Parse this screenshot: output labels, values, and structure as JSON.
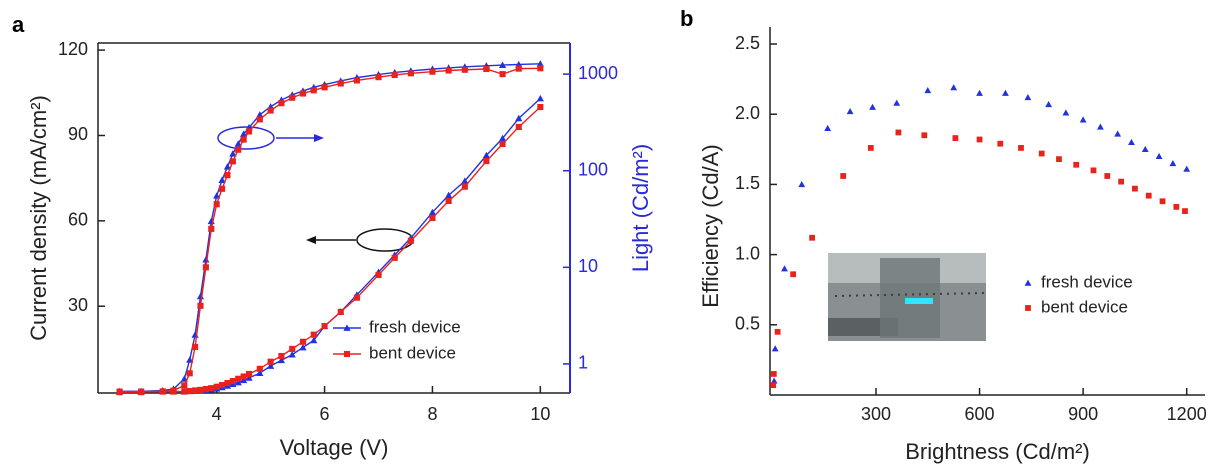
{
  "chart_data": [
    {
      "type": "line",
      "panel_label": "a",
      "xlabel": "Voltage (V)",
      "ylabel": "Current density (mA/cm²)",
      "y2label": "Light (Cd/m²)",
      "xlim": [
        1.8,
        10.55
      ],
      "xticks": [
        4,
        6,
        8,
        10
      ],
      "ylim": [
        -0.5,
        122.5
      ],
      "yticks": [
        30,
        60,
        90,
        120
      ],
      "y2lim": [
        0.5,
        2100
      ],
      "y2ticks": [
        1,
        10,
        100,
        1000
      ],
      "y2scale": "log",
      "y2color": "#2a2ad8",
      "legend": "lower right",
      "x": [
        2.2,
        2.6,
        3.0,
        3.2,
        3.4,
        3.5,
        3.6,
        3.7,
        3.8,
        3.9,
        4.0,
        4.1,
        4.2,
        4.3,
        4.4,
        4.5,
        4.6,
        4.8,
        5.0,
        5.2,
        5.4,
        5.6,
        5.8,
        6.0,
        6.3,
        6.6,
        7.0,
        7.3,
        7.6,
        8.0,
        8.3,
        8.6,
        9.0,
        9.3,
        9.6,
        10.0
      ],
      "series": [
        {
          "name": "fresh device",
          "color": "#2233dd",
          "marker": "triangle",
          "values": [
            0,
            0,
            0,
            0,
            0,
            0.1,
            0.2,
            0.3,
            0.5,
            0.7,
            1,
            1.5,
            2,
            2.6,
            3.2,
            4,
            4.8,
            6.5,
            9,
            11,
            13,
            15.5,
            18,
            23,
            28,
            34,
            42,
            48,
            54,
            63,
            69,
            74,
            83,
            89,
            96,
            103
          ],
          "y2_values": [
            0.52,
            0.52,
            0.53,
            0.55,
            0.7,
            1.1,
            2,
            5,
            12,
            30,
            55,
            80,
            110,
            150,
            190,
            240,
            280,
            380,
            460,
            540,
            610,
            670,
            730,
            780,
            850,
            920,
            990,
            1040,
            1080,
            1130,
            1160,
            1190,
            1220,
            1240,
            1260,
            1280
          ]
        },
        {
          "name": "bent device",
          "color": "#e8231e",
          "marker": "square",
          "values": [
            0,
            0,
            0,
            0,
            0,
            0.2,
            0.4,
            0.6,
            0.9,
            1.2,
            1.7,
            2.3,
            3,
            3.7,
            4.5,
            5.3,
            6.2,
            8,
            10.5,
            12.5,
            15,
            17.5,
            20,
            23,
            28,
            33,
            41,
            47,
            53,
            61,
            67,
            72,
            81,
            87,
            93,
            100
          ],
          "y2_values": [
            0.51,
            0.51,
            0.52,
            0.53,
            0.6,
            0.8,
            1.5,
            4,
            10,
            25,
            45,
            65,
            90,
            125,
            165,
            210,
            255,
            340,
            420,
            500,
            570,
            630,
            680,
            730,
            800,
            860,
            930,
            980,
            1020,
            1060,
            1090,
            1110,
            1130,
            1000,
            1140,
            1150
          ]
        }
      ]
    },
    {
      "type": "scatter",
      "panel_label": "b",
      "xlabel": "Brightness (Cd/m²)",
      "ylabel": "Efficiency (Cd/A)",
      "xlim": [
        -7,
        1253
      ],
      "xticks": [
        300,
        600,
        900,
        1200
      ],
      "ylim": [
        0,
        2.55
      ],
      "yticks": [
        0.5,
        {
          "value": 1,
          "label": "1.0"
        },
        1.5,
        {
          "value": 2,
          "label": "2.0"
        },
        2.5
      ],
      "legend": "right",
      "series": [
        {
          "name": "fresh device",
          "color": "#2233dd",
          "marker": "triangle",
          "x": [
            5,
            8,
            35,
            85,
            160,
            225,
            290,
            360,
            450,
            525,
            600,
            675,
            740,
            800,
            850,
            900,
            950,
            1000,
            1040,
            1080,
            1120,
            1160,
            1200
          ],
          "values": [
            0.1,
            0.33,
            0.9,
            1.5,
            1.9,
            2.02,
            2.05,
            2.08,
            2.17,
            2.19,
            2.15,
            2.15,
            2.12,
            2.07,
            2.01,
            1.96,
            1.91,
            1.86,
            1.8,
            1.75,
            1.7,
            1.65,
            1.61
          ]
        },
        {
          "name": "bent device",
          "color": "#e8231e",
          "marker": "square",
          "x": [
            2,
            4,
            15,
            60,
            115,
            205,
            285,
            365,
            440,
            530,
            600,
            660,
            720,
            780,
            830,
            880,
            930,
            970,
            1010,
            1050,
            1090,
            1130,
            1170,
            1195
          ],
          "values": [
            0.07,
            0.15,
            0.45,
            0.86,
            1.12,
            1.56,
            1.76,
            1.87,
            1.85,
            1.83,
            1.82,
            1.79,
            1.76,
            1.72,
            1.68,
            1.64,
            1.6,
            1.56,
            1.52,
            1.47,
            1.42,
            1.38,
            1.34,
            1.31
          ]
        }
      ]
    }
  ]
}
